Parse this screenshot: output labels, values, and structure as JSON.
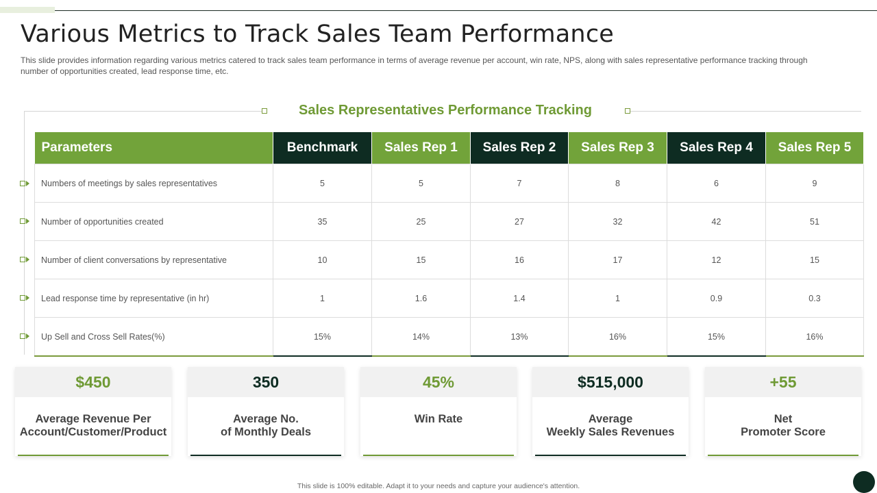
{
  "title": "Various Metrics to Track Sales Team Performance",
  "subtitle": "This slide provides  information regarding various  metrics catered to track sales team performance  in terms of average  revenue  per account, win rate, NPS, along with sales representative  performance tracking through  number of opportunities created, lead response time, etc.",
  "section_title": "Sales Representatives  Performance Tracking",
  "table": {
    "headers": [
      "Parameters",
      "Benchmark",
      "Sales Rep 1",
      "Sales Rep 2",
      "Sales Rep 3",
      "Sales Rep 4",
      "Sales Rep 5"
    ],
    "rows": [
      {
        "param": "Numbers  of meetings  by sales representatives",
        "values": [
          "5",
          "5",
          "7",
          "8",
          "6",
          "9"
        ]
      },
      {
        "param": "Number  of opportunities created",
        "values": [
          "35",
          "25",
          "27",
          "32",
          "42",
          "51"
        ]
      },
      {
        "param": "Number  of client conversations  by representative",
        "values": [
          "10",
          "15",
          "16",
          "17",
          "12",
          "15"
        ]
      },
      {
        "param": "Lead response time by representative  (in hr)",
        "values": [
          "1",
          "1.6",
          "1.4",
          "1",
          "0.9",
          "0.3"
        ]
      },
      {
        "param": "Up Sell and Cross Sell Rates(%)",
        "values": [
          "15%",
          "14%",
          "13%",
          "16%",
          "15%",
          "16%"
        ]
      }
    ]
  },
  "cards": [
    {
      "value": "$450",
      "label": "Average Revenue Per\nAccount/Customer/Product",
      "color": "#6f9a35"
    },
    {
      "value": "350",
      "label": "Average No.\nof Monthly Deals",
      "color": "#0e2c22"
    },
    {
      "value": "45%",
      "label": "Win Rate",
      "color": "#6f9a35"
    },
    {
      "value": "$515,000",
      "label": "Average\nWeekly Sales Revenues",
      "color": "#0e2c22"
    },
    {
      "value": "+55",
      "label": "Net\nPromoter Score",
      "color": "#6f9a35"
    }
  ],
  "footer": "This slide is 100% editable.  Adapt it to your needs and capture your audience's attention.",
  "colors": {
    "green": "#72a33a",
    "dark_green": "#0e2c22"
  }
}
